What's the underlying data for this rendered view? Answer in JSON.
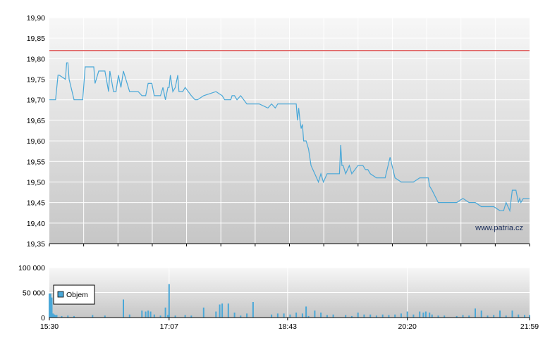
{
  "chart_data": [
    {
      "type": "line",
      "ylim": [
        19.35,
        19.9
      ],
      "y_ticks": [
        "19,90",
        "19,85",
        "19,80",
        "19,75",
        "19,70",
        "19,65",
        "19,60",
        "19,55",
        "19,50",
        "19,45",
        "19,40",
        "19,35"
      ],
      "y_tick_values": [
        19.9,
        19.85,
        19.8,
        19.75,
        19.7,
        19.65,
        19.6,
        19.55,
        19.5,
        19.45,
        19.4,
        19.35
      ],
      "grid": true,
      "reference_line": {
        "value": 19.82,
        "color": "#e06060"
      },
      "series": [
        {
          "color": "#4aa8d8",
          "x": [
            "15:30",
            "15:35",
            "15:37",
            "15:38",
            "15:43",
            "15:44",
            "15:45",
            "15:46",
            "15:50",
            "15:55",
            "15:57",
            "15:59",
            "16:06",
            "16:07",
            "16:10",
            "16:15",
            "16:18",
            "16:19",
            "16:22",
            "16:24",
            "16:26",
            "16:28",
            "16:30",
            "16:35",
            "16:42",
            "16:45",
            "16:47",
            "16:48",
            "16:50",
            "16:53",
            "16:55",
            "16:57",
            "17:00",
            "17:02",
            "17:04",
            "17:06",
            "17:07",
            "17:08",
            "17:10",
            "17:12",
            "17:14",
            "17:15",
            "17:17",
            "17:18",
            "17:20",
            "17:25",
            "17:28",
            "17:30",
            "17:35",
            "17:45",
            "17:50",
            "17:52",
            "17:57",
            "17:58",
            "18:00",
            "18:02",
            "18:05",
            "18:10",
            "18:15",
            "18:20",
            "18:27",
            "18:30",
            "18:33",
            "18:35",
            "18:40",
            "18:50",
            "18:51",
            "18:52",
            "18:53",
            "18:54",
            "18:55",
            "18:56",
            "18:58",
            "19:00",
            "19:02",
            "19:05",
            "19:08",
            "19:10",
            "19:12",
            "19:15",
            "19:18",
            "19:20",
            "19:25",
            "19:26",
            "19:27",
            "19:28",
            "19:30",
            "19:33",
            "19:35",
            "19:40",
            "19:44",
            "19:46",
            "19:48",
            "19:50",
            "19:55",
            "19:58",
            "20:02",
            "20:06",
            "20:10",
            "20:15",
            "20:17",
            "20:20",
            "20:25",
            "20:30",
            "20:37",
            "20:38",
            "20:40",
            "20:45",
            "20:55",
            "21:00",
            "21:05",
            "21:10",
            "21:15",
            "21:20",
            "21:25",
            "21:30",
            "21:35",
            "21:38",
            "21:40",
            "21:43",
            "21:45",
            "21:47",
            "21:48",
            "21:50",
            "21:51",
            "21:52",
            "21:54",
            "21:56",
            "21:59"
          ],
          "y": [
            19.7,
            19.7,
            19.76,
            19.76,
            19.75,
            19.79,
            19.79,
            19.75,
            19.7,
            19.7,
            19.7,
            19.78,
            19.78,
            19.74,
            19.77,
            19.77,
            19.72,
            19.77,
            19.72,
            19.72,
            19.76,
            19.73,
            19.77,
            19.72,
            19.72,
            19.71,
            19.71,
            19.71,
            19.74,
            19.74,
            19.71,
            19.71,
            19.71,
            19.73,
            19.7,
            19.73,
            19.73,
            19.76,
            19.72,
            19.73,
            19.76,
            19.72,
            19.72,
            19.72,
            19.73,
            19.71,
            19.7,
            19.7,
            19.71,
            19.72,
            19.71,
            19.7,
            19.7,
            19.71,
            19.71,
            19.7,
            19.71,
            19.69,
            19.69,
            19.69,
            19.68,
            19.69,
            19.68,
            19.69,
            19.69,
            19.69,
            19.65,
            19.68,
            19.65,
            19.63,
            19.64,
            19.6,
            19.6,
            19.58,
            19.54,
            19.52,
            19.5,
            19.52,
            19.5,
            19.52,
            19.52,
            19.52,
            19.52,
            19.59,
            19.54,
            19.54,
            19.52,
            19.54,
            19.52,
            19.54,
            19.54,
            19.53,
            19.53,
            19.52,
            19.51,
            19.51,
            19.51,
            19.56,
            19.51,
            19.5,
            19.5,
            19.5,
            19.5,
            19.51,
            19.51,
            19.49,
            19.48,
            19.45,
            19.45,
            19.45,
            19.46,
            19.45,
            19.45,
            19.44,
            19.44,
            19.44,
            19.43,
            19.43,
            19.45,
            19.43,
            19.48,
            19.48,
            19.48,
            19.45,
            19.46,
            19.45,
            19.46,
            19.46,
            19.46
          ]
        }
      ],
      "watermark": "www.patria.cz"
    },
    {
      "type": "bar",
      "ylim": [
        0,
        100000
      ],
      "y_ticks": [
        "100 000",
        "50 000",
        "0"
      ],
      "y_tick_values": [
        100000,
        50000,
        0
      ],
      "x_tick_labels": [
        "15:30",
        "17:07",
        "18:43",
        "20:20",
        "21:59"
      ],
      "xlim": [
        "15:30",
        "21:59"
      ],
      "grid": true,
      "legend": {
        "entries": [
          "Objem"
        ],
        "placement": "top-left"
      },
      "series": [
        {
          "name": "Objem",
          "color": "#4aa8d8",
          "x": [
            "15:30",
            "15:31",
            "15:32",
            "15:33",
            "15:34",
            "15:35",
            "15:36",
            "15:40",
            "15:45",
            "15:50",
            "16:05",
            "16:15",
            "16:30",
            "16:35",
            "16:45",
            "16:48",
            "16:50",
            "16:52",
            "16:55",
            "17:00",
            "17:04",
            "17:06",
            "17:07",
            "17:12",
            "17:20",
            "17:25",
            "17:35",
            "17:45",
            "17:48",
            "17:50",
            "17:55",
            "18:00",
            "18:05",
            "18:10",
            "18:15",
            "18:30",
            "18:35",
            "18:40",
            "18:45",
            "18:50",
            "18:55",
            "18:58",
            "19:00",
            "19:05",
            "19:10",
            "19:15",
            "19:20",
            "19:30",
            "19:35",
            "19:40",
            "19:45",
            "19:50",
            "19:55",
            "20:00",
            "20:05",
            "20:10",
            "20:15",
            "20:20",
            "20:25",
            "20:30",
            "20:33",
            "20:35",
            "20:38",
            "20:40",
            "20:45",
            "20:50",
            "21:00",
            "21:05",
            "21:10",
            "21:15",
            "21:20",
            "21:25",
            "21:30",
            "21:35",
            "21:40",
            "21:45",
            "21:50",
            "21:55",
            "21:59"
          ],
          "values": [
            48000,
            48000,
            40000,
            8000,
            6000,
            5000,
            5000,
            3000,
            4000,
            3000,
            5000,
            4000,
            36000,
            6000,
            14000,
            12000,
            14000,
            12000,
            6000,
            4000,
            20000,
            5000,
            67000,
            4000,
            5000,
            4000,
            20000,
            12000,
            26000,
            28000,
            28000,
            10000,
            4000,
            8000,
            31000,
            6000,
            8000,
            8000,
            6000,
            10000,
            8000,
            22000,
            3000,
            14000,
            10000,
            5000,
            6000,
            5000,
            3000,
            10000,
            6000,
            6000,
            4000,
            6000,
            5000,
            6000,
            8000,
            12000,
            6000,
            12000,
            10000,
            12000,
            10000,
            6000,
            4000,
            4000,
            3000,
            5000,
            4000,
            18000,
            14000,
            4000,
            5000,
            14000,
            4000,
            14000,
            6000,
            5000,
            5000
          ]
        }
      ]
    }
  ]
}
